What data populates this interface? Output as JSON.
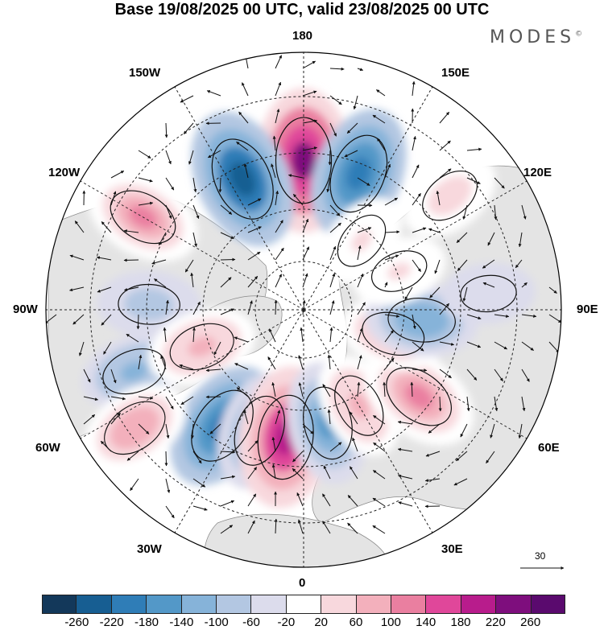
{
  "title": "Base 19/08/2025 00 UTC, valid 23/08/2025 00 UTC",
  "brand": "MODES",
  "brand_mark": "©",
  "longitude_labels": {
    "top": "180",
    "bottom": "0",
    "left": "90W",
    "right": "90E",
    "upper_left": "150W",
    "upper_right": "150E",
    "mid_upper_left": "120W",
    "mid_upper_right": "120E",
    "mid_lower_left": "60W",
    "mid_lower_right": "60E",
    "lower_left": "30W",
    "lower_right": "30E"
  },
  "reference_vector": "30",
  "colorbar": {
    "ticks": [
      "-260",
      "-220",
      "-180",
      "-140",
      "-100",
      "-60",
      "-20",
      "20",
      "60",
      "100",
      "140",
      "180",
      "220",
      "260"
    ],
    "colors": [
      "#13385a",
      "#175e92",
      "#2f7db7",
      "#5398c8",
      "#86b3d9",
      "#b3c7e2",
      "#dcdcec",
      "#ffffff",
      "#f8d8dd",
      "#f3b0bc",
      "#ea7fa0",
      "#e0479a",
      "#b81c8c",
      "#7e0e7d",
      "#5a0a6e"
    ]
  },
  "anomalies": [
    {
      "lon": 180,
      "r": 0.58,
      "value": 240
    },
    {
      "lon": 158,
      "r": 0.57,
      "value": -200
    },
    {
      "lon": 205,
      "r": 0.56,
      "value": -230
    },
    {
      "lon": 240,
      "r": 0.72,
      "value": 130
    },
    {
      "lon": 128,
      "r": 0.72,
      "value": 70
    },
    {
      "lon": 268,
      "r": 0.6,
      "value": -70
    },
    {
      "lon": 290,
      "r": 0.7,
      "value": -90
    },
    {
      "lon": 290,
      "r": 0.42,
      "value": 100
    },
    {
      "lon": 325,
      "r": 0.55,
      "value": -190
    },
    {
      "lon": 340,
      "r": 0.5,
      "value": -140
    },
    {
      "lon": 352,
      "r": 0.5,
      "value": 230
    },
    {
      "lon": 12,
      "r": 0.45,
      "value": -150
    },
    {
      "lon": 30,
      "r": 0.43,
      "value": 90
    },
    {
      "lon": 53,
      "r": 0.56,
      "value": 150
    },
    {
      "lon": 75,
      "r": 0.36,
      "value": 80
    },
    {
      "lon": 85,
      "r": 0.46,
      "value": -110
    },
    {
      "lon": 305,
      "r": 0.8,
      "value": 110
    },
    {
      "lon": 95,
      "r": 0.72,
      "value": -30
    },
    {
      "lon": 140,
      "r": 0.35,
      "value": 50
    },
    {
      "lon": 112,
      "r": 0.4,
      "value": 40
    }
  ]
}
